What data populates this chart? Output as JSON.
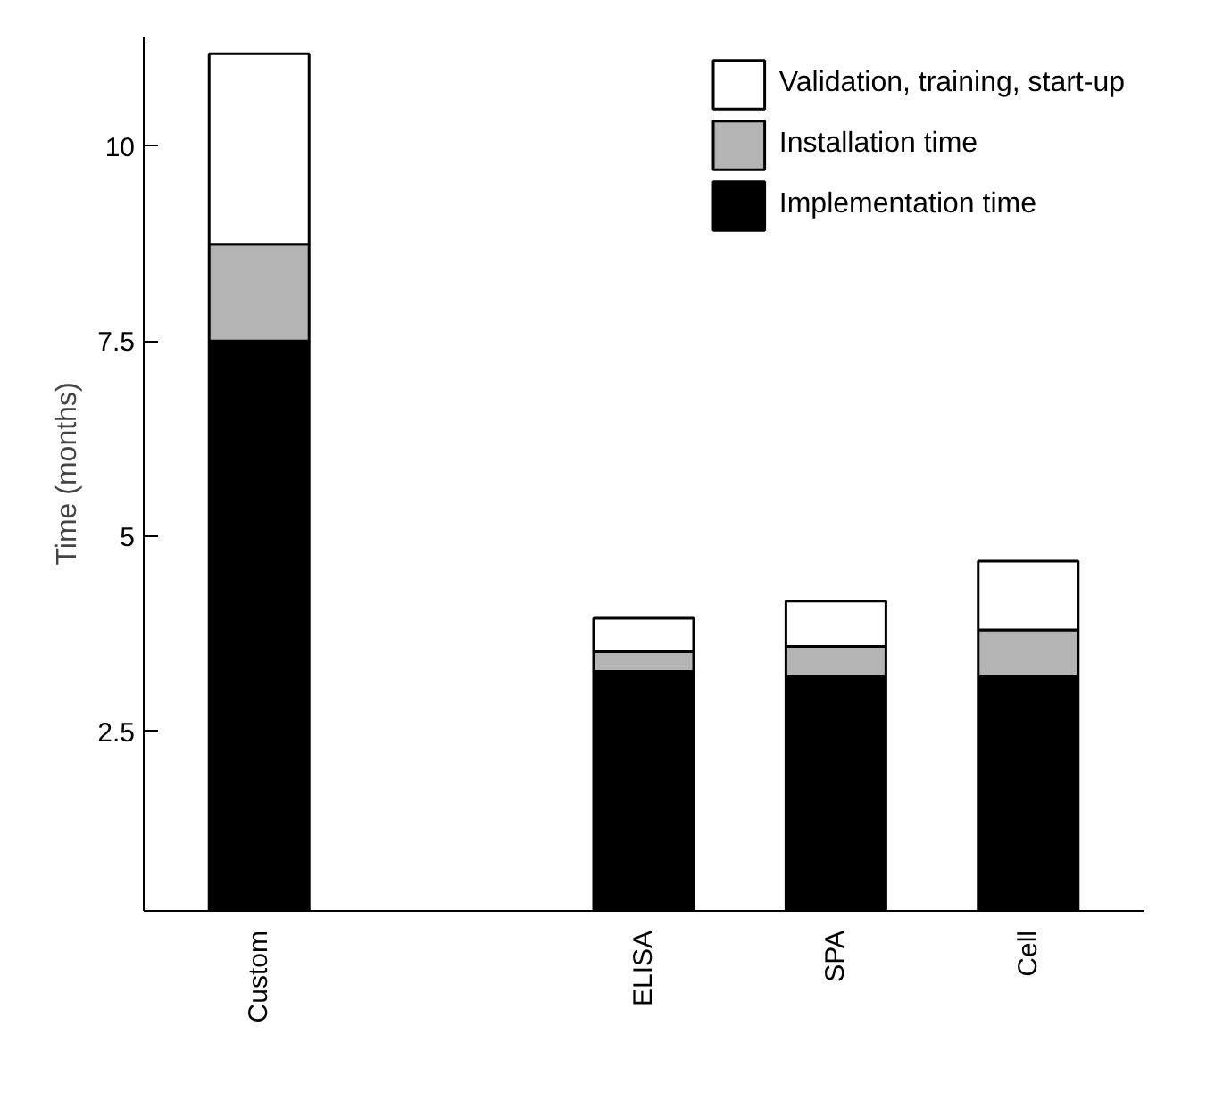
{
  "chart_data": {
    "type": "bar",
    "stacked": true,
    "ylabel": "Time (months)",
    "categories": [
      "Custom",
      null,
      "ELISA",
      "SPA",
      "Cell"
    ],
    "series": [
      {
        "name": "Implementation time",
        "color": "#000000",
        "values": [
          7.5,
          null,
          3.27,
          3.2,
          3.2
        ]
      },
      {
        "name": "Installation time",
        "color": "#b4b4b4",
        "values": [
          1.24,
          null,
          0.25,
          0.39,
          0.6
        ]
      },
      {
        "name": "Validation, training, start-up",
        "color": "#ffffff",
        "values": [
          2.44,
          null,
          0.43,
          0.58,
          0.88
        ]
      }
    ],
    "ylim": [
      0.2,
      11.4
    ],
    "yticks": [
      2.5,
      5,
      7.5,
      10
    ],
    "grid": false,
    "legend": "top right"
  }
}
